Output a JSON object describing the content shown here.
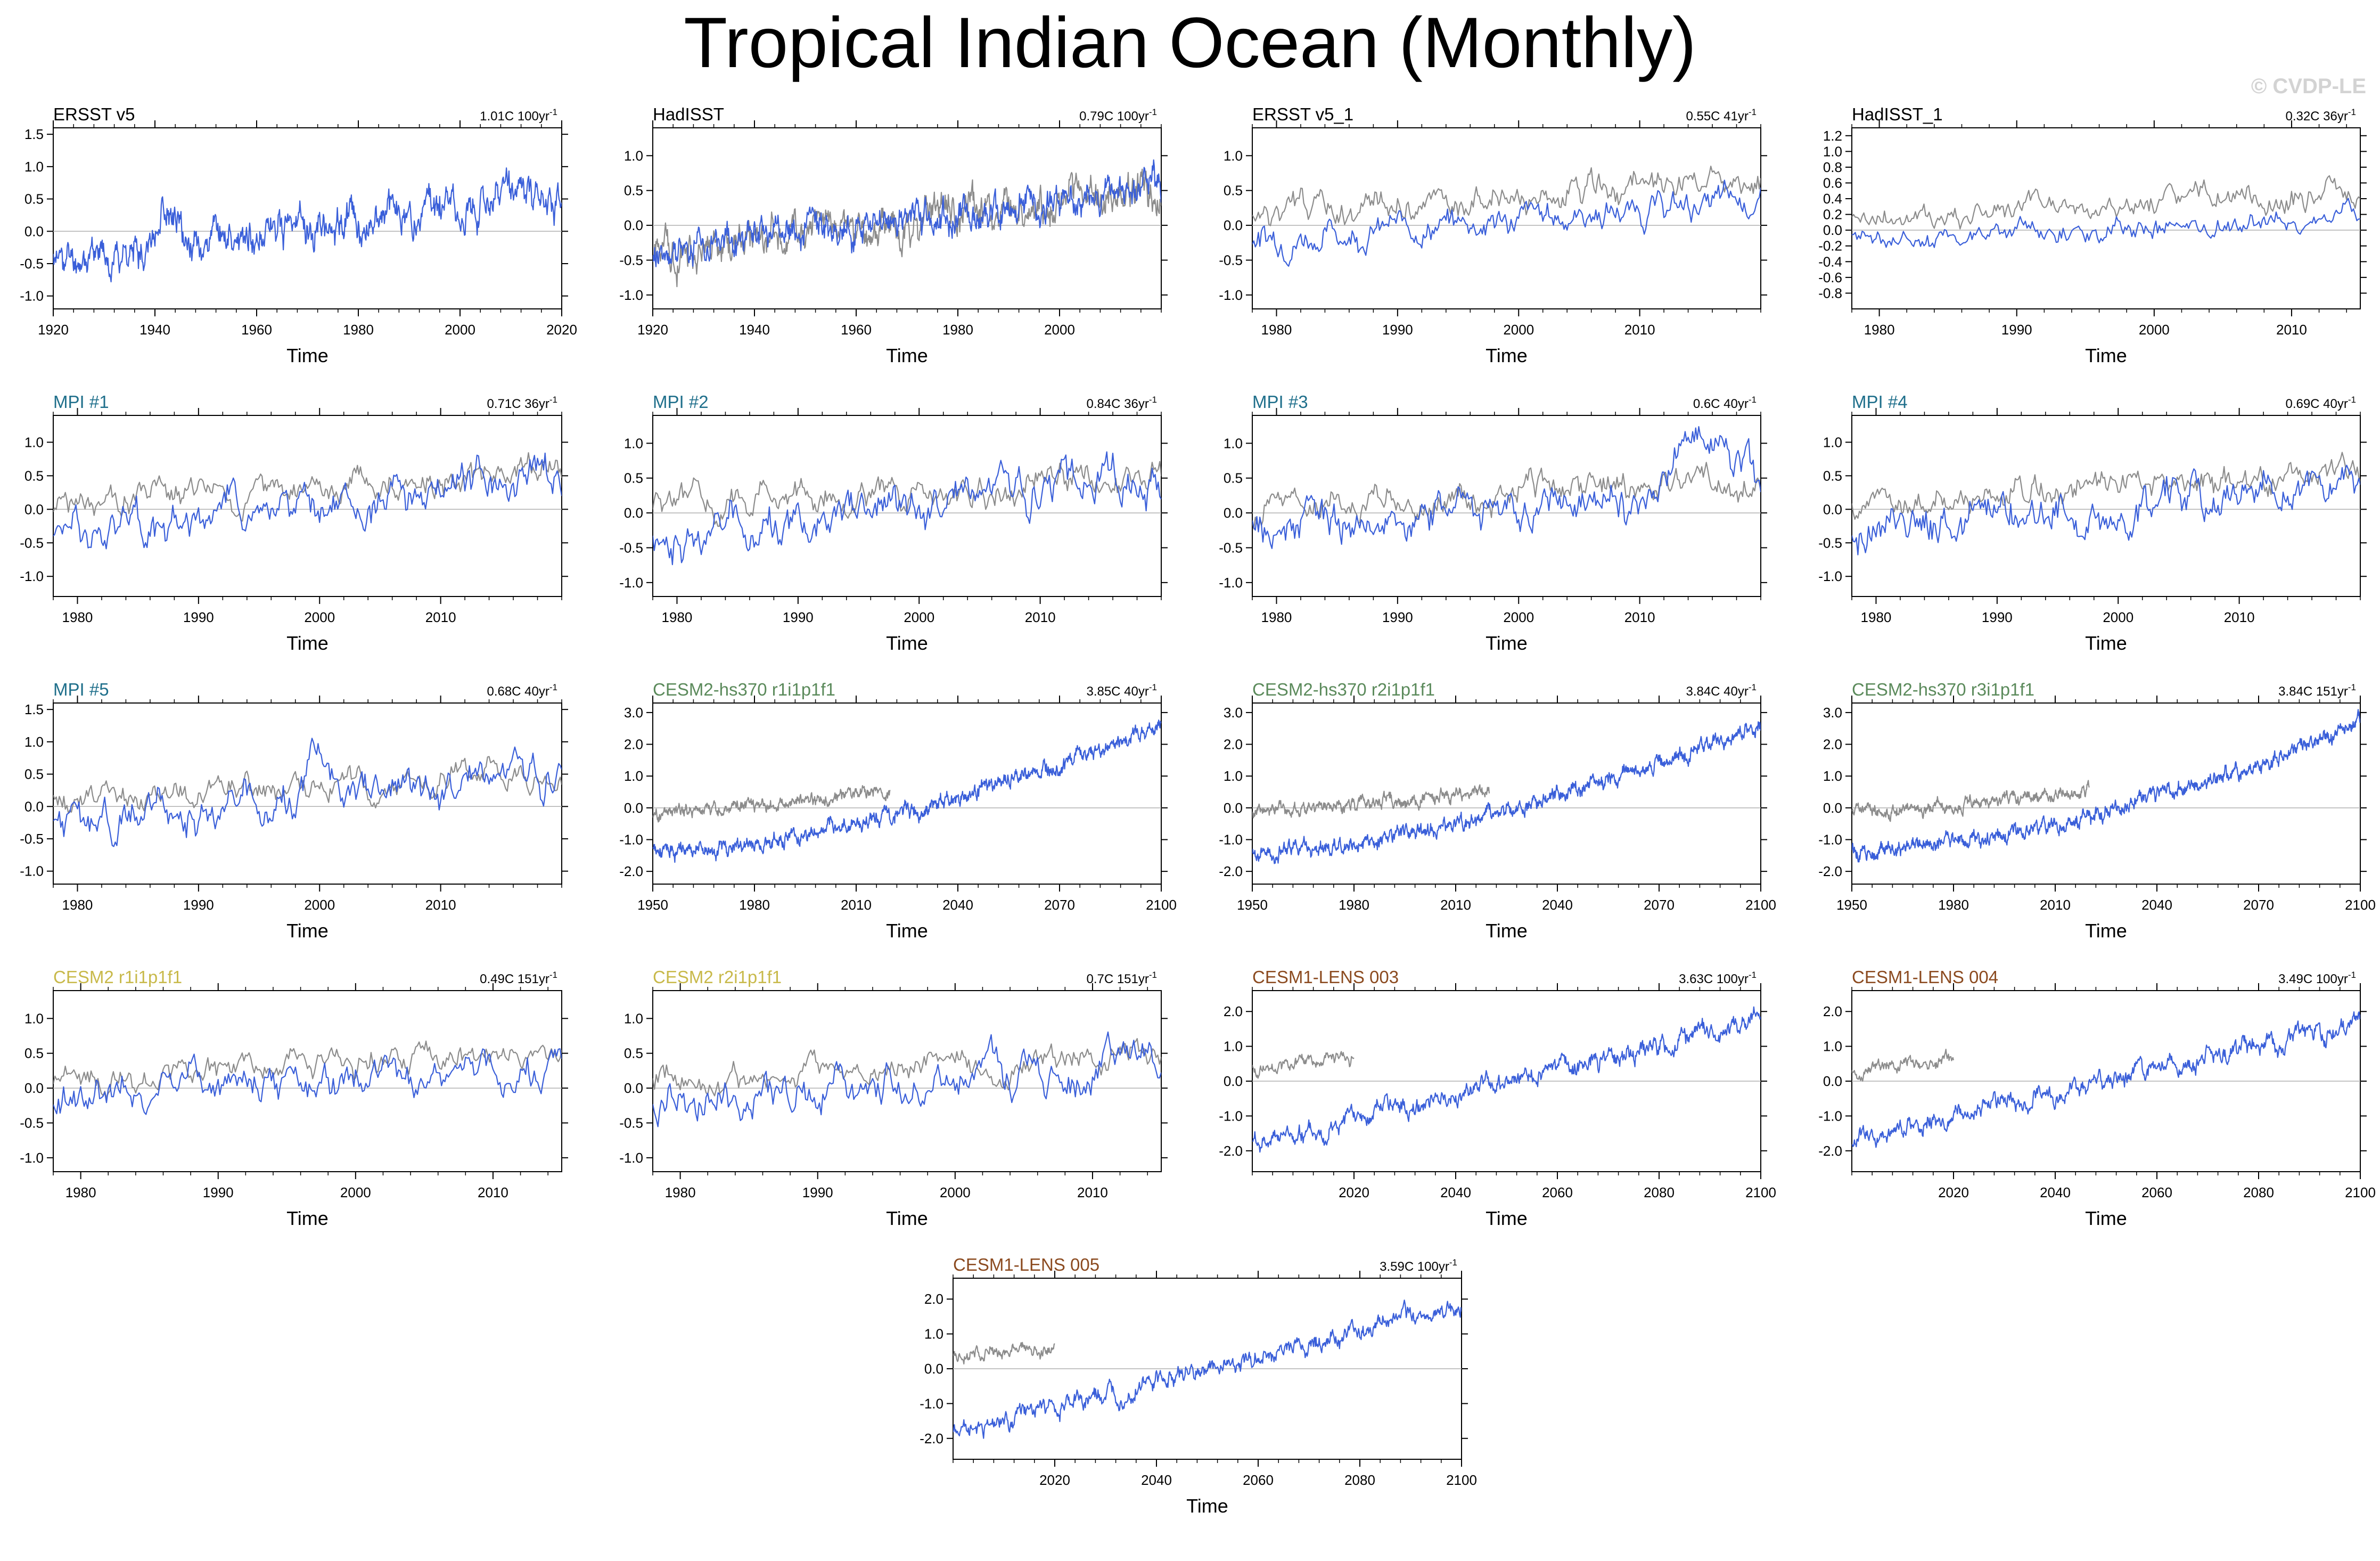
{
  "title": "Tropical Indian Ocean (Monthly)",
  "watermark": "© CVDP-LE",
  "colors": {
    "model": "#3a5fd9",
    "observed": "#8c8c8c",
    "zero_line": "#b0b0b0",
    "obs_title": "#000000",
    "mpi": "#1f6f8b",
    "cesm2_hs370": "#5b8a5b",
    "cesm2": "#c8b94a",
    "cesm1": "#8b4a1f"
  },
  "chart_data": [
    {
      "type": "line",
      "title": "ERSST v5",
      "title_color": "#000000",
      "trend": "1.01C 100yr",
      "xlabel": "Time",
      "xlim": [
        1920,
        2020
      ],
      "xticks": [
        1920,
        1940,
        1960,
        1980,
        2000,
        2020
      ],
      "ylim": [
        -1.2,
        1.6
      ],
      "yticks": [
        1.5,
        1.0,
        0.5,
        0.0,
        -0.5,
        -1.0
      ],
      "ytick_labels": [
        "1.5",
        "1.0",
        "0.5",
        "0.0",
        "-0.5",
        "-1.0"
      ],
      "series": [
        {
          "name": "ERSST v5",
          "color": "#3a5fd9",
          "trend_start": -0.45,
          "trend_end": 0.62,
          "noise": 0.25,
          "seed": 11,
          "x_start": 1920,
          "x_end": 2020,
          "bumps": [
            [
              1942,
              0.6,
              2
            ]
          ]
        }
      ]
    },
    {
      "type": "line",
      "title": "HadISST",
      "title_color": "#000000",
      "trend": "0.79C 100yr",
      "xlabel": "Time",
      "xlim": [
        1920,
        2020
      ],
      "xticks": [
        1920,
        1940,
        1960,
        1980,
        2000
      ],
      "ylim": [
        -1.2,
        1.4
      ],
      "yticks": [
        1.0,
        0.5,
        0.0,
        -0.5,
        -1.0
      ],
      "ytick_labels": [
        "1.0",
        "0.5",
        "0.0",
        "-0.5",
        "-1.0"
      ],
      "series": [
        {
          "name": "observed",
          "color": "#8c8c8c",
          "trend_start": -0.35,
          "trend_end": 0.5,
          "noise": 0.25,
          "seed": 21,
          "x_start": 1920,
          "x_end": 2020
        },
        {
          "name": "HadISST",
          "color": "#3a5fd9",
          "trend_start": -0.35,
          "trend_end": 0.5,
          "noise": 0.22,
          "seed": 22,
          "x_start": 1920,
          "x_end": 2020
        }
      ]
    },
    {
      "type": "line",
      "title": "ERSST v5_1",
      "title_color": "#000000",
      "trend": "0.55C 41yr",
      "xlabel": "Time",
      "xlim": [
        1978,
        2020
      ],
      "xticks": [
        1980,
        1990,
        2000,
        2010
      ],
      "ylim": [
        -1.2,
        1.4
      ],
      "yticks": [
        1.0,
        0.5,
        0.0,
        -0.5,
        -1.0
      ],
      "ytick_labels": [
        "1.0",
        "0.5",
        "0.0",
        "-0.5",
        "-1.0"
      ],
      "series": [
        {
          "name": "observed",
          "color": "#8c8c8c",
          "trend_start": 0.15,
          "trend_end": 0.6,
          "noise": 0.2,
          "seed": 31,
          "x_start": 1978,
          "x_end": 2020
        },
        {
          "name": "ERSST v5_1",
          "color": "#3a5fd9",
          "trend_start": -0.2,
          "trend_end": 0.35,
          "noise": 0.2,
          "seed": 32,
          "x_start": 1978,
          "x_end": 2020
        }
      ]
    },
    {
      "type": "line",
      "title": "HadISST_1",
      "title_color": "#000000",
      "trend": "0.32C 36yr",
      "xlabel": "Time",
      "xlim": [
        1978,
        2015
      ],
      "xticks": [
        1980,
        1990,
        2000,
        2010
      ],
      "ylim": [
        -1.0,
        1.3
      ],
      "yticks": [
        1.2,
        1.0,
        0.8,
        0.6,
        0.4,
        0.2,
        0.0,
        -0.2,
        -0.4,
        -0.6,
        -0.8
      ],
      "ytick_labels": [
        "1.2",
        "1.0",
        "0.8",
        "0.6",
        "0.4",
        "0.2",
        "0.0",
        "-0.2",
        "-0.4",
        "-0.6",
        "-0.8"
      ],
      "series": [
        {
          "name": "observed",
          "color": "#8c8c8c",
          "trend_start": 0.1,
          "trend_end": 0.45,
          "noise": 0.15,
          "seed": 41,
          "x_start": 1978,
          "x_end": 2015
        },
        {
          "name": "HadISST_1",
          "color": "#3a5fd9",
          "trend_start": -0.15,
          "trend_end": 0.15,
          "noise": 0.13,
          "seed": 42,
          "x_start": 1978,
          "x_end": 2015
        }
      ]
    },
    {
      "type": "line",
      "title": "MPI #1",
      "title_color": "#1f6f8b",
      "trend": "0.71C 36yr",
      "xlabel": "Time",
      "xlim": [
        1978,
        2020
      ],
      "xticks": [
        1980,
        1990,
        2000,
        2010
      ],
      "ylim": [
        -1.3,
        1.4
      ],
      "yticks": [
        1.0,
        0.5,
        0.0,
        -0.5,
        -1.0
      ],
      "ytick_labels": [
        "1.0",
        "0.5",
        "0.0",
        "-0.5",
        "-1.0"
      ],
      "series": [
        {
          "name": "observed",
          "color": "#8c8c8c",
          "trend_start": 0.05,
          "trend_end": 0.55,
          "noise": 0.2,
          "seed": 51,
          "x_start": 1978,
          "x_end": 2020
        },
        {
          "name": "MPI #1",
          "color": "#3a5fd9",
          "trend_start": -0.35,
          "trend_end": 0.45,
          "noise": 0.28,
          "seed": 52,
          "x_start": 1978,
          "x_end": 2020
        }
      ]
    },
    {
      "type": "line",
      "title": "MPI #2",
      "title_color": "#1f6f8b",
      "trend": "0.84C 36yr",
      "xlabel": "Time",
      "xlim": [
        1978,
        2020
      ],
      "xticks": [
        1980,
        1990,
        2000,
        2010
      ],
      "ylim": [
        -1.2,
        1.4
      ],
      "yticks": [
        1.0,
        0.5,
        0.0,
        -0.5,
        -1.0
      ],
      "ytick_labels": [
        "1.0",
        "0.5",
        "0.0",
        "-0.5",
        "-1.0"
      ],
      "series": [
        {
          "name": "observed",
          "color": "#8c8c8c",
          "trend_start": 0.05,
          "trend_end": 0.55,
          "noise": 0.2,
          "seed": 61,
          "x_start": 1978,
          "x_end": 2020
        },
        {
          "name": "MPI #2",
          "color": "#3a5fd9",
          "trend_start": -0.4,
          "trend_end": 0.5,
          "noise": 0.27,
          "seed": 62,
          "x_start": 1978,
          "x_end": 2020
        }
      ]
    },
    {
      "type": "line",
      "title": "MPI #3",
      "title_color": "#1f6f8b",
      "trend": "0.6C 40yr",
      "xlabel": "Time",
      "xlim": [
        1978,
        2020
      ],
      "xticks": [
        1980,
        1990,
        2000,
        2010
      ],
      "ylim": [
        -1.2,
        1.4
      ],
      "yticks": [
        1.0,
        0.5,
        0.0,
        -0.5,
        -1.0
      ],
      "ytick_labels": [
        "1.0",
        "0.5",
        "0.0",
        "-0.5",
        "-1.0"
      ],
      "series": [
        {
          "name": "observed",
          "color": "#8c8c8c",
          "trend_start": 0.05,
          "trend_end": 0.55,
          "noise": 0.2,
          "seed": 71,
          "x_start": 1978,
          "x_end": 2020
        },
        {
          "name": "MPI #3",
          "color": "#3a5fd9",
          "trend_start": -0.3,
          "trend_end": 0.4,
          "noise": 0.27,
          "seed": 72,
          "x_start": 1978,
          "x_end": 2020,
          "bumps": [
            [
              2015,
              0.9,
              2.5
            ]
          ]
        }
      ]
    },
    {
      "type": "line",
      "title": "MPI #4",
      "title_color": "#1f6f8b",
      "trend": "0.69C 40yr",
      "xlabel": "Time",
      "xlim": [
        1978,
        2020
      ],
      "xticks": [
        1980,
        1990,
        2000,
        2010
      ],
      "ylim": [
        -1.3,
        1.4
      ],
      "yticks": [
        1.0,
        0.5,
        0.0,
        -0.5,
        -1.0
      ],
      "ytick_labels": [
        "1.0",
        "0.5",
        "0.0",
        "-0.5",
        "-1.0"
      ],
      "series": [
        {
          "name": "observed",
          "color": "#8c8c8c",
          "trend_start": 0.05,
          "trend_end": 0.55,
          "noise": 0.2,
          "seed": 81,
          "x_start": 1978,
          "x_end": 2020
        },
        {
          "name": "MPI #4",
          "color": "#3a5fd9",
          "trend_start": -0.35,
          "trend_end": 0.45,
          "noise": 0.27,
          "seed": 82,
          "x_start": 1978,
          "x_end": 2020
        }
      ]
    },
    {
      "type": "line",
      "title": "MPI #5",
      "title_color": "#1f6f8b",
      "trend": "0.68C 40yr",
      "xlabel": "Time",
      "xlim": [
        1978,
        2020
      ],
      "xticks": [
        1980,
        1990,
        2000,
        2010
      ],
      "ylim": [
        -1.2,
        1.6
      ],
      "yticks": [
        1.5,
        1.0,
        0.5,
        0.0,
        -0.5,
        -1.0
      ],
      "ytick_labels": [
        "1.5",
        "1.0",
        "0.5",
        "0.0",
        "-0.5",
        "-1.0"
      ],
      "series": [
        {
          "name": "observed",
          "color": "#8c8c8c",
          "trend_start": 0.05,
          "trend_end": 0.55,
          "noise": 0.2,
          "seed": 91,
          "x_start": 1978,
          "x_end": 2020
        },
        {
          "name": "MPI #5",
          "color": "#3a5fd9",
          "trend_start": -0.3,
          "trend_end": 0.45,
          "noise": 0.27,
          "seed": 92,
          "x_start": 1978,
          "x_end": 2020,
          "bumps": [
            [
              2000,
              0.9,
              1.2
            ]
          ]
        }
      ]
    },
    {
      "type": "line",
      "title": "CESM2-hs370 r1i1p1f1",
      "title_color": "#5b8a5b",
      "trend": "3.85C 40yr",
      "xlabel": "Time",
      "xlim": [
        1950,
        2100
      ],
      "xticks": [
        1950,
        1980,
        2010,
        2040,
        2070,
        2100
      ],
      "ylim": [
        -2.4,
        3.3
      ],
      "yticks": [
        3.0,
        2.0,
        1.0,
        0.0,
        -1.0,
        -2.0
      ],
      "ytick_labels": [
        "3.0",
        "2.0",
        "1.0",
        "0.0",
        "-1.0",
        "-2.0"
      ],
      "series": [
        {
          "name": "observed",
          "color": "#8c8c8c",
          "trend_start": -0.2,
          "trend_end": 0.5,
          "noise": 0.18,
          "seed": 101,
          "x_start": 1950,
          "x_end": 2020
        },
        {
          "name": "CESM2-hs370 r1i1p1f1",
          "color": "#3a5fd9",
          "trend_start": -1.4,
          "trend_end": 2.6,
          "noise": 0.22,
          "seed": 102,
          "x_start": 1950,
          "x_end": 2100,
          "curve": 1.6
        }
      ]
    },
    {
      "type": "line",
      "title": "CESM2-hs370 r2i1p1f1",
      "title_color": "#5b8a5b",
      "trend": "3.84C 40yr",
      "xlabel": "Time",
      "xlim": [
        1950,
        2100
      ],
      "xticks": [
        1950,
        1980,
        2010,
        2040,
        2070,
        2100
      ],
      "ylim": [
        -2.4,
        3.3
      ],
      "yticks": [
        3.0,
        2.0,
        1.0,
        0.0,
        -1.0,
        -2.0
      ],
      "ytick_labels": [
        "3.0",
        "2.0",
        "1.0",
        "0.0",
        "-1.0",
        "-2.0"
      ],
      "series": [
        {
          "name": "observed",
          "color": "#8c8c8c",
          "trend_start": -0.2,
          "trend_end": 0.5,
          "noise": 0.18,
          "seed": 111,
          "x_start": 1950,
          "x_end": 2020
        },
        {
          "name": "CESM2-hs370 r2i1p1f1",
          "color": "#3a5fd9",
          "trend_start": -1.4,
          "trend_end": 2.6,
          "noise": 0.22,
          "seed": 112,
          "x_start": 1950,
          "x_end": 2100,
          "curve": 1.6
        }
      ]
    },
    {
      "type": "line",
      "title": "CESM2-hs370 r3i1p1f1",
      "title_color": "#5b8a5b",
      "trend": "3.84C 151yr",
      "xlabel": "Time",
      "xlim": [
        1950,
        2100
      ],
      "xticks": [
        1950,
        1980,
        2010,
        2040,
        2070,
        2100
      ],
      "ylim": [
        -2.4,
        3.3
      ],
      "yticks": [
        3.0,
        2.0,
        1.0,
        0.0,
        -1.0,
        -2.0
      ],
      "ytick_labels": [
        "3.0",
        "2.0",
        "1.0",
        "0.0",
        "-1.0",
        "-2.0"
      ],
      "series": [
        {
          "name": "observed",
          "color": "#8c8c8c",
          "trend_start": -0.2,
          "trend_end": 0.5,
          "noise": 0.18,
          "seed": 121,
          "x_start": 1950,
          "x_end": 2020
        },
        {
          "name": "CESM2-hs370 r3i1p1f1",
          "color": "#3a5fd9",
          "trend_start": -1.4,
          "trend_end": 2.6,
          "noise": 0.22,
          "seed": 122,
          "x_start": 1950,
          "x_end": 2100,
          "curve": 1.6
        }
      ]
    },
    {
      "type": "line",
      "title": "CESM2 r1i1p1f1",
      "title_color": "#c8b94a",
      "trend": "0.49C 151yr",
      "xlabel": "Time",
      "xlim": [
        1978,
        2015
      ],
      "xticks": [
        1980,
        1990,
        2000,
        2010
      ],
      "ylim": [
        -1.2,
        1.4
      ],
      "yticks": [
        1.0,
        0.5,
        0.0,
        -0.5,
        -1.0
      ],
      "ytick_labels": [
        "1.0",
        "0.5",
        "0.0",
        "-0.5",
        "-1.0"
      ],
      "series": [
        {
          "name": "observed",
          "color": "#8c8c8c",
          "trend_start": 0.1,
          "trend_end": 0.5,
          "noise": 0.18,
          "seed": 131,
          "x_start": 1978,
          "x_end": 2015
        },
        {
          "name": "CESM2 r1i1p1f1",
          "color": "#3a5fd9",
          "trend_start": -0.1,
          "trend_end": 0.3,
          "noise": 0.25,
          "seed": 132,
          "x_start": 1978,
          "x_end": 2015
        }
      ]
    },
    {
      "type": "line",
      "title": "CESM2 r2i1p1f1",
      "title_color": "#c8b94a",
      "trend": "0.7C 151yr",
      "xlabel": "Time",
      "xlim": [
        1978,
        2015
      ],
      "xticks": [
        1980,
        1990,
        2000,
        2010
      ],
      "ylim": [
        -1.2,
        1.4
      ],
      "yticks": [
        1.0,
        0.5,
        0.0,
        -0.5,
        -1.0
      ],
      "ytick_labels": [
        "1.0",
        "0.5",
        "0.0",
        "-0.5",
        "-1.0"
      ],
      "series": [
        {
          "name": "observed",
          "color": "#8c8c8c",
          "trend_start": 0.1,
          "trend_end": 0.5,
          "noise": 0.18,
          "seed": 141,
          "x_start": 1978,
          "x_end": 2015
        },
        {
          "name": "CESM2 r2i1p1f1",
          "color": "#3a5fd9",
          "trend_start": -0.2,
          "trend_end": 0.4,
          "noise": 0.27,
          "seed": 142,
          "x_start": 1978,
          "x_end": 2015
        }
      ]
    },
    {
      "type": "line",
      "title": "CESM1-LENS 003",
      "title_color": "#8b4a1f",
      "trend": "3.63C 100yr",
      "xlabel": "Time",
      "xlim": [
        2000,
        2100
      ],
      "xticks": [
        2020,
        2040,
        2060,
        2080,
        2100
      ],
      "ylim": [
        -2.6,
        2.6
      ],
      "yticks": [
        2.0,
        1.0,
        0.0,
        -1.0,
        -2.0
      ],
      "ytick_labels": [
        "2.0",
        "1.0",
        "0.0",
        "-1.0",
        "-2.0"
      ],
      "series": [
        {
          "name": "observed",
          "color": "#8c8c8c",
          "trend_start": 0.35,
          "trend_end": 0.65,
          "noise": 0.17,
          "seed": 151,
          "x_start": 2000,
          "x_end": 2020
        },
        {
          "name": "CESM1-LENS 003",
          "color": "#3a5fd9",
          "trend_start": -1.8,
          "trend_end": 1.8,
          "noise": 0.25,
          "seed": 152,
          "x_start": 2000,
          "x_end": 2100
        }
      ]
    },
    {
      "type": "line",
      "title": "CESM1-LENS 004",
      "title_color": "#8b4a1f",
      "trend": "3.49C 100yr",
      "xlabel": "Time",
      "xlim": [
        2000,
        2100
      ],
      "xticks": [
        2020,
        2040,
        2060,
        2080,
        2100
      ],
      "ylim": [
        -2.6,
        2.6
      ],
      "yticks": [
        2.0,
        1.0,
        0.0,
        -1.0,
        -2.0
      ],
      "ytick_labels": [
        "2.0",
        "1.0",
        "0.0",
        "-1.0",
        "-2.0"
      ],
      "series": [
        {
          "name": "observed",
          "color": "#8c8c8c",
          "trend_start": 0.35,
          "trend_end": 0.65,
          "noise": 0.17,
          "seed": 161,
          "x_start": 2000,
          "x_end": 2020
        },
        {
          "name": "CESM1-LENS 004",
          "color": "#3a5fd9",
          "trend_start": -1.7,
          "trend_end": 1.7,
          "noise": 0.25,
          "seed": 162,
          "x_start": 2000,
          "x_end": 2100
        }
      ]
    },
    {
      "type": "line",
      "title": "CESM1-LENS 005",
      "title_color": "#8b4a1f",
      "trend": "3.59C 100yr",
      "xlabel": "Time",
      "xlim": [
        2000,
        2100
      ],
      "xticks": [
        2020,
        2040,
        2060,
        2080,
        2100
      ],
      "ylim": [
        -2.6,
        2.6
      ],
      "yticks": [
        2.0,
        1.0,
        0.0,
        -1.0,
        -2.0
      ],
      "ytick_labels": [
        "2.0",
        "1.0",
        "0.0",
        "-1.0",
        "-2.0"
      ],
      "series": [
        {
          "name": "observed",
          "color": "#8c8c8c",
          "trend_start": 0.35,
          "trend_end": 0.65,
          "noise": 0.17,
          "seed": 171,
          "x_start": 2000,
          "x_end": 2020
        },
        {
          "name": "CESM1-LENS 005",
          "color": "#3a5fd9",
          "trend_start": -1.8,
          "trend_end": 1.8,
          "noise": 0.25,
          "seed": 172,
          "x_start": 2000,
          "x_end": 2100
        }
      ]
    }
  ]
}
